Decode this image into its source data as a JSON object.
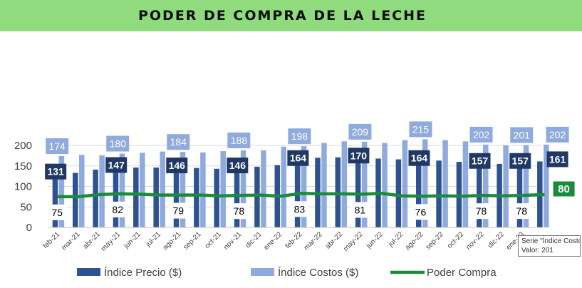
{
  "title": "PODER DE COMPRA DE LA LECHE",
  "colors": {
    "title_bg": "#8fdb7d",
    "precio": "#2e5291",
    "costos": "#8faadc",
    "poder": "#1c8a3d",
    "dark_label_bg": "#1f3864",
    "light_label_bg": "#8faadc"
  },
  "tooltip": {
    "line1": "Serie \"Índice Costos\"",
    "line2": "Valor: 201"
  },
  "chart_data": {
    "type": "bar",
    "categories": [
      "feb-21",
      "mar-21",
      "abr-21",
      "may-21",
      "jun-21",
      "jul-21",
      "ago-21",
      "sep-21",
      "oct-21",
      "nov-21",
      "dic-21",
      "ene-22",
      "feb-22",
      "mar-22",
      "abr-22",
      "may-22",
      "jun-22",
      "jul-22",
      "ago-22",
      "sep-22",
      "oct-22",
      "nov-22",
      "dic-22",
      "ene-23",
      ""
    ],
    "ylim": [
      0,
      200
    ],
    "yticks": [
      0,
      50,
      100,
      150,
      200
    ],
    "series": [
      {
        "name": "Índice Precio ($)",
        "type": "bar",
        "values": [
          131,
          133,
          141,
          147,
          146,
          146,
          146,
          145,
          143,
          146,
          148,
          152,
          164,
          170,
          171,
          170,
          168,
          166,
          164,
          163,
          160,
          157,
          155,
          157,
          161
        ],
        "labeled": [
          0,
          3,
          6,
          9,
          12,
          15,
          18,
          21,
          23,
          24
        ]
      },
      {
        "name": "Índice Costos ($)",
        "type": "bar",
        "values": [
          174,
          177,
          176,
          180,
          182,
          185,
          184,
          183,
          186,
          188,
          188,
          197,
          198,
          206,
          210,
          209,
          206,
          213,
          215,
          213,
          210,
          202,
          200,
          201,
          202
        ],
        "labeled": [
          0,
          3,
          6,
          9,
          12,
          15,
          18,
          21,
          23,
          24
        ]
      },
      {
        "name": "Poder Compra",
        "type": "line",
        "values": [
          75,
          75,
          80,
          82,
          81,
          79,
          79,
          79,
          77,
          78,
          79,
          76,
          83,
          82,
          82,
          81,
          83,
          77,
          76,
          77,
          76,
          78,
          77,
          78,
          80
        ],
        "labeled": [
          0,
          3,
          6,
          9,
          12,
          15,
          18,
          21,
          23,
          24
        ]
      }
    ],
    "legend_position": "bottom",
    "grid": "horizontal"
  }
}
